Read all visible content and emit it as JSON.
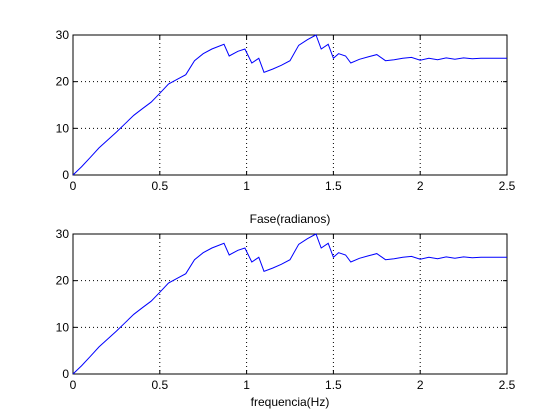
{
  "figure": {
    "background": "#ffffff",
    "line_color": "#0000ff"
  },
  "chart_data": [
    {
      "type": "line",
      "title": "",
      "xlabel": "",
      "ylabel": "",
      "xlim": [
        0,
        2.5
      ],
      "ylim": [
        0,
        30
      ],
      "xticks": [
        0,
        0.5,
        1,
        1.5,
        2,
        2.5
      ],
      "xtick_labels": [
        "0",
        "0.5",
        "1",
        "1.5",
        "2",
        "2.5"
      ],
      "yticks": [
        0,
        10,
        20,
        30
      ],
      "ytick_labels": [
        "0",
        "10",
        "20",
        "30"
      ],
      "grid": true,
      "series": [
        {
          "x": [
            0,
            0.05,
            0.1,
            0.15,
            0.2,
            0.25,
            0.3,
            0.35,
            0.4,
            0.45,
            0.5,
            0.55,
            0.6,
            0.65,
            0.7,
            0.75,
            0.8,
            0.87,
            0.9,
            0.95,
            0.99,
            1.03,
            1.07,
            1.1,
            1.15,
            1.2,
            1.25,
            1.3,
            1.35,
            1.4,
            1.43,
            1.47,
            1.5,
            1.53,
            1.57,
            1.6,
            1.65,
            1.7,
            1.75,
            1.8,
            1.85,
            1.9,
            1.95,
            2.0,
            2.05,
            2.1,
            2.15,
            2.2,
            2.25,
            2.3,
            2.35,
            2.4,
            2.45,
            2.5
          ],
          "y": [
            0,
            1.8,
            3.8,
            5.8,
            7.5,
            9.2,
            11.0,
            12.8,
            14.2,
            15.6,
            17.5,
            19.5,
            20.5,
            21.5,
            24.5,
            26.0,
            27.0,
            28.0,
            25.5,
            26.5,
            27.0,
            24.0,
            25.0,
            22.0,
            22.7,
            23.5,
            24.5,
            27.8,
            29.0,
            30.0,
            27.0,
            28.0,
            25.0,
            26.0,
            25.5,
            24.0,
            24.8,
            25.3,
            25.8,
            24.5,
            24.7,
            25.0,
            25.2,
            24.6,
            25.0,
            24.7,
            25.1,
            24.8,
            25.1,
            24.9,
            25.0,
            25.0,
            25.0,
            25.0
          ]
        }
      ]
    },
    {
      "type": "line",
      "title": "Fase(radianos)",
      "xlabel": "frequencia(Hz)",
      "ylabel": "",
      "xlim": [
        0,
        2.5
      ],
      "ylim": [
        0,
        30
      ],
      "xticks": [
        0,
        0.5,
        1,
        1.5,
        2,
        2.5
      ],
      "xtick_labels": [
        "0",
        "0.5",
        "1",
        "1.5",
        "2",
        "2.5"
      ],
      "yticks": [
        0,
        10,
        20,
        30
      ],
      "ytick_labels": [
        "0",
        "10",
        "20",
        "30"
      ],
      "grid": true,
      "series": [
        {
          "x": [
            0,
            0.05,
            0.1,
            0.15,
            0.2,
            0.25,
            0.3,
            0.35,
            0.4,
            0.45,
            0.5,
            0.55,
            0.6,
            0.65,
            0.7,
            0.75,
            0.8,
            0.87,
            0.9,
            0.95,
            0.99,
            1.03,
            1.07,
            1.1,
            1.15,
            1.2,
            1.25,
            1.3,
            1.35,
            1.4,
            1.43,
            1.47,
            1.5,
            1.53,
            1.57,
            1.6,
            1.65,
            1.7,
            1.75,
            1.8,
            1.85,
            1.9,
            1.95,
            2.0,
            2.05,
            2.1,
            2.15,
            2.2,
            2.25,
            2.3,
            2.35,
            2.4,
            2.45,
            2.5
          ],
          "y": [
            0,
            1.8,
            3.8,
            5.8,
            7.5,
            9.2,
            11.0,
            12.8,
            14.2,
            15.6,
            17.5,
            19.5,
            20.5,
            21.5,
            24.5,
            26.0,
            27.0,
            28.0,
            25.5,
            26.5,
            27.0,
            24.0,
            25.0,
            22.0,
            22.7,
            23.5,
            24.5,
            27.8,
            29.0,
            30.0,
            27.0,
            28.0,
            25.0,
            26.0,
            25.5,
            24.0,
            24.8,
            25.3,
            25.8,
            24.5,
            24.7,
            25.0,
            25.2,
            24.6,
            25.0,
            24.7,
            25.1,
            24.8,
            25.1,
            24.9,
            25.0,
            25.0,
            25.0,
            25.0
          ]
        }
      ]
    }
  ]
}
